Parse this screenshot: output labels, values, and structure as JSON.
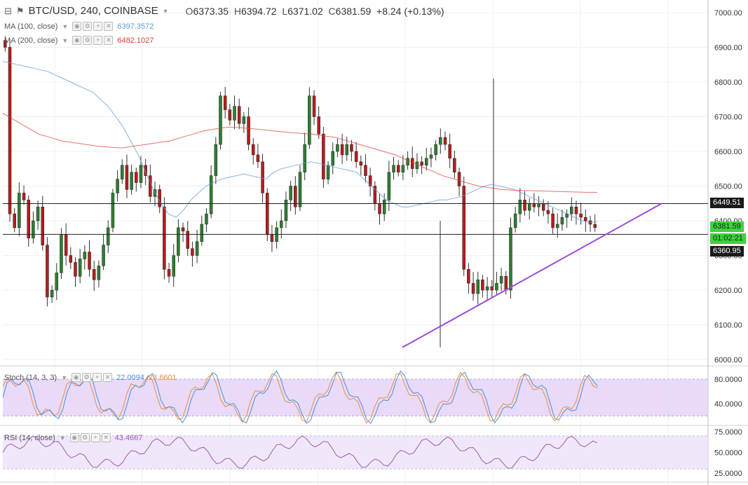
{
  "header": {
    "symbol": "BTC/USD, 240, COINBASE",
    "open": "6373.35",
    "high": "6394.72",
    "low": "6371.02",
    "close": "6381.59",
    "change": "+8.24 (+0.13%)",
    "o_label": "O",
    "h_label": "H",
    "l_label": "L",
    "c_label": "C"
  },
  "ma100": {
    "label": "MA (100, close)",
    "value": "6397.3572",
    "color": "#5b9bd5"
  },
  "ma200": {
    "label": "MA (200, close)",
    "value": "6482.1027",
    "color": "#e0403a"
  },
  "stoch": {
    "label": "Stoch (14, 3, 3)",
    "k_value": "22.0094",
    "d_value": "23.6601",
    "k_color": "#4a90d9",
    "d_color": "#f08c3a"
  },
  "rsi": {
    "label": "RSI (14, close)",
    "value": "43.4667",
    "color": "#9b59b6"
  },
  "price_axis": [
    "7000.00",
    "6900.00",
    "6800.00",
    "6700.00",
    "6600.00",
    "6500.00",
    "6400.00",
    "6300.00",
    "6200.00",
    "6100.00",
    "6000.00"
  ],
  "stoch_axis": [
    "80.0000",
    "40.0000"
  ],
  "rsi_axis": [
    "75.0000",
    "50.0000",
    "25.0000"
  ],
  "price_tags": {
    "resistance": "6449.51",
    "last": "6381.59",
    "countdown": "01:02:21",
    "support": "6360.95"
  },
  "colors": {
    "bull": "#2e7d32",
    "bear": "#b71c1c",
    "band": "#e4d4f7",
    "trend": "#9b4de0"
  },
  "chart_data": {
    "type": "candlestick",
    "ylim": [
      5975,
      7040
    ],
    "hlines": [
      6449.51,
      6360.95
    ],
    "trendline": [
      {
        "bar": 0.635,
        "price": 6035
      },
      {
        "bar": 0.985,
        "price": 6450
      }
    ],
    "closes": [
      6900,
      6420,
      6380,
      6480,
      6460,
      6350,
      6400,
      6440,
      6330,
      6180,
      6200,
      6250,
      6360,
      6300,
      6280,
      6240,
      6290,
      6310,
      6260,
      6230,
      6270,
      6330,
      6380,
      6480,
      6520,
      6560,
      6490,
      6540,
      6510,
      6560,
      6530,
      6470,
      6490,
      6440,
      6260,
      6240,
      6300,
      6380,
      6370,
      6320,
      6300,
      6340,
      6390,
      6420,
      6530,
      6620,
      6760,
      6720,
      6690,
      6730,
      6680,
      6700,
      6620,
      6590,
      6570,
      6480,
      6360,
      6340,
      6380,
      6400,
      6460,
      6500,
      6440,
      6540,
      6620,
      6760,
      6700,
      6650,
      6520,
      6560,
      6600,
      6620,
      6590,
      6620,
      6600,
      6570,
      6560,
      6530,
      6500,
      6450,
      6420,
      6460,
      6540,
      6560,
      6540,
      6560,
      6580,
      6550,
      6570,
      6560,
      6580,
      6590,
      6620,
      6640,
      6620,
      6580,
      6540,
      6500,
      6260,
      6220,
      6190,
      6230,
      6200,
      6210,
      6200,
      6220,
      6240,
      6200,
      6380,
      6420,
      6460,
      6430,
      6450,
      6440,
      6450,
      6430,
      6420,
      6380,
      6390,
      6410,
      6420,
      6440,
      6420,
      6410,
      6400,
      6390,
      6380
    ],
    "ma100": [
      6860,
      6855,
      6850,
      6845,
      6840,
      6835,
      6830,
      6820,
      6810,
      6800,
      6790,
      6780,
      6770,
      6750,
      6730,
      6700,
      6670,
      6630,
      6590,
      6540,
      6490,
      6450,
      6420,
      6410,
      6430,
      6460,
      6480,
      6500,
      6510,
      6520,
      6525,
      6530,
      6535,
      6530,
      6525,
      6520,
      6540,
      6550,
      6555,
      6560,
      6565,
      6570,
      6565,
      6560,
      6555,
      6550,
      6545,
      6540,
      6520,
      6500,
      6480,
      6460,
      6450,
      6440,
      6440,
      6445,
      6450,
      6455,
      6460,
      6460,
      6465,
      6470,
      6480,
      6490,
      6500,
      6505,
      6500,
      6495,
      6490,
      6480,
      6470,
      6460,
      6450,
      6440,
      6430,
      6420,
      6410,
      6400,
      6395,
      6397
    ],
    "ma200": [
      6710,
      6690,
      6670,
      6650,
      6640,
      6630,
      6625,
      6620,
      6615,
      6612,
      6610,
      6615,
      6620,
      6625,
      6630,
      6640,
      6650,
      6660,
      6665,
      6670,
      6668,
      6665,
      6662,
      6658,
      6655,
      6652,
      6650,
      6645,
      6640,
      6630,
      6620,
      6610,
      6600,
      6590,
      6575,
      6560,
      6545,
      6530,
      6520,
      6510,
      6500,
      6495,
      6490,
      6488,
      6487,
      6486,
      6485,
      6484,
      6483,
      6482,
      6482
    ]
  }
}
